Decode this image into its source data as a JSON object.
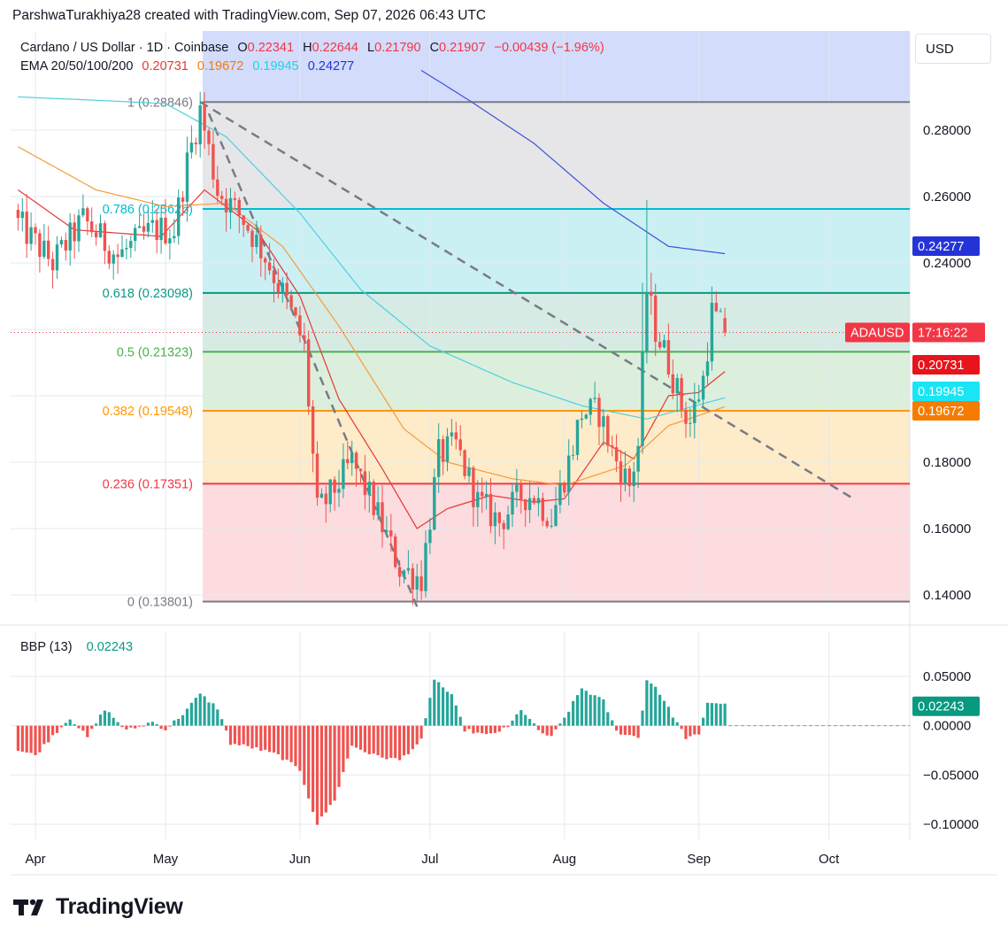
{
  "header": {
    "credit": "ParshwaTurakhiya28 created with TradingView.com, Sep 07, 2026 06:43 UTC",
    "currency": "USD"
  },
  "legend": {
    "symbol": "Cardano / US Dollar · 1D · Coinbase",
    "o_label": "O",
    "o_value": "0.22341",
    "h_label": "H",
    "h_value": "0.22644",
    "l_label": "L",
    "l_value": "0.21790",
    "c_label": "C",
    "c_value": "0.21907",
    "change": "−0.00439 (−1.96%)",
    "ema_label": "EMA 20/50/100/200",
    "ema20": "0.20731",
    "ema50": "0.19672",
    "ema100": "0.19945",
    "ema200": "0.24277"
  },
  "bbp_legend": {
    "label": "BBP (13)",
    "value": "0.02243"
  },
  "logo": {
    "text": "TradingView"
  },
  "colors": {
    "up": "#26a69a",
    "down": "#ef5350",
    "ema20": "#e53935",
    "ema50": "#f59c3d",
    "ema100": "#4dd0e1",
    "ema200": "#3f51d8",
    "grid": "#e6e8ee",
    "text": "#131722"
  },
  "chart_data": [
    {
      "type": "candlestick",
      "title": "Cardano / US Dollar · 1D · Coinbase",
      "y_axis_ticks": [
        "0.28000",
        "0.26000",
        "0.24000",
        "0.18000",
        "0.16000",
        "0.14000"
      ],
      "x_axis_ticks": [
        "Apr",
        "May",
        "Jun",
        "Jul",
        "Aug",
        "Sep",
        "Oct"
      ],
      "ylim": [
        0.1365,
        0.2975
      ],
      "grid": true,
      "fib_levels": [
        {
          "ratio": "1",
          "label": "1 (0.28846)",
          "price": 0.28846,
          "color": "#787b86"
        },
        {
          "ratio": "0.786",
          "label": "0.786 (0.25626)",
          "price": 0.25626,
          "color": "#00bcd4"
        },
        {
          "ratio": "0.618",
          "label": "0.618 (0.23098)",
          "price": 0.23098,
          "color": "#089981"
        },
        {
          "ratio": "0.5",
          "label": "0.5 (0.21323)",
          "price": 0.21323,
          "color": "#4caf50"
        },
        {
          "ratio": "0.382",
          "label": "0.382 (0.19548)",
          "price": 0.19548,
          "color": "#ff9800"
        },
        {
          "ratio": "0.236",
          "label": "0.236 (0.17351)",
          "price": 0.17351,
          "color": "#f23645"
        },
        {
          "ratio": "0",
          "label": "0 (0.13801)",
          "price": 0.13801,
          "color": "#787b86"
        }
      ],
      "trendlines": [
        {
          "name": "descending trendline",
          "from": [
            "May 09",
            0.2885
          ],
          "to": [
            "Oct 06",
            0.1695
          ]
        },
        {
          "name": "breakdown line",
          "from": [
            "May 11",
            0.285
          ],
          "to": [
            "Jun 28",
            0.1365
          ]
        }
      ],
      "price_tags": [
        {
          "label": "0.24277",
          "color": "#2433d8"
        },
        {
          "label": "0.20731",
          "color": "#e8141b"
        },
        {
          "label": "0.19945",
          "color": "#19e5f5"
        },
        {
          "label": "0.19672",
          "color": "#f57c00"
        },
        {
          "label": "ADAUSD",
          "color": "#f23645"
        },
        {
          "label": "17:16:22",
          "color": "#f23645"
        }
      ],
      "last_price": 0.21907,
      "candles_note": "daily OHLC, Mar 28 – Sep 07",
      "close_anchors": [
        [
          "Mar 28",
          0.252
        ],
        [
          "Apr 05",
          0.24
        ],
        [
          "Apr 12",
          0.253
        ],
        [
          "Apr 20",
          0.242
        ],
        [
          "Apr 28",
          0.25
        ],
        [
          "May 03",
          0.25
        ],
        [
          "May 06",
          0.27
        ],
        [
          "May 09",
          0.286
        ],
        [
          "May 13",
          0.262
        ],
        [
          "May 19",
          0.253
        ],
        [
          "May 24",
          0.242
        ],
        [
          "May 29",
          0.228
        ],
        [
          "Jun 02",
          0.215
        ],
        [
          "Jun 05",
          0.165
        ],
        [
          "Jun 08",
          0.17
        ],
        [
          "Jun 13",
          0.18
        ],
        [
          "Jun 18",
          0.167
        ],
        [
          "Jun 24",
          0.148
        ],
        [
          "Jun 29",
          0.145
        ],
        [
          "Jul 03",
          0.182
        ],
        [
          "Jul 07",
          0.185
        ],
        [
          "Jul 12",
          0.168
        ],
        [
          "Jul 17",
          0.162
        ],
        [
          "Jul 22",
          0.17
        ],
        [
          "Jul 25",
          0.17
        ],
        [
          "Jul 29",
          0.163
        ],
        [
          "Aug 02",
          0.18
        ],
        [
          "Aug 05",
          0.195
        ],
        [
          "Aug 09",
          0.195
        ],
        [
          "Aug 12",
          0.183
        ],
        [
          "Aug 16",
          0.173
        ],
        [
          "Aug 18",
          0.185
        ],
        [
          "Aug 20",
          0.232
        ],
        [
          "Aug 22",
          0.22
        ],
        [
          "Aug 25",
          0.21
        ],
        [
          "Aug 28",
          0.197
        ],
        [
          "Aug 30",
          0.192
        ],
        [
          "Sep 02",
          0.205
        ],
        [
          "Sep 04",
          0.225
        ],
        [
          "Sep 07",
          0.2191
        ]
      ],
      "ema_series": [
        {
          "name": "EMA 20",
          "points": [
            [
              "Mar 28",
              0.262
            ],
            [
              "Apr 10",
              0.25
            ],
            [
              "Apr 30",
              0.248
            ],
            [
              "May 10",
              0.262
            ],
            [
              "May 22",
              0.25
            ],
            [
              "Jun 01",
              0.23
            ],
            [
              "Jun 10",
              0.199
            ],
            [
              "Jun 20",
              0.178
            ],
            [
              "Jun 28",
              0.16
            ],
            [
              "Jul 05",
              0.166
            ],
            [
              "Jul 15",
              0.17
            ],
            [
              "Jul 25",
              0.168
            ],
            [
              "Aug 01",
              0.169
            ],
            [
              "Aug 10",
              0.186
            ],
            [
              "Aug 17",
              0.181
            ],
            [
              "Aug 25",
              0.2
            ],
            [
              "Sep 01",
              0.201
            ],
            [
              "Sep 07",
              0.2073
            ]
          ]
        },
        {
          "name": "EMA 50",
          "points": [
            [
              "Mar 28",
              0.275
            ],
            [
              "Apr 15",
              0.262
            ],
            [
              "May 01",
              0.257
            ],
            [
              "May 15",
              0.258
            ],
            [
              "May 28",
              0.245
            ],
            [
              "Jun 10",
              0.221
            ],
            [
              "Jun 25",
              0.19
            ],
            [
              "Jul 05",
              0.18
            ],
            [
              "Jul 20",
              0.175
            ],
            [
              "Aug 01",
              0.173
            ],
            [
              "Aug 15",
              0.179
            ],
            [
              "Aug 25",
              0.191
            ],
            [
              "Sep 07",
              0.1967
            ]
          ]
        },
        {
          "name": "EMA 100",
          "points": [
            [
              "Mar 28",
              0.29
            ],
            [
              "Apr 15",
              0.289
            ],
            [
              "May 01",
              0.288
            ],
            [
              "May 15",
              0.278
            ],
            [
              "Jun 01",
              0.255
            ],
            [
              "Jun 15",
              0.232
            ],
            [
              "Jul 01",
              0.215
            ],
            [
              "Jul 20",
              0.204
            ],
            [
              "Aug 05",
              0.197
            ],
            [
              "Aug 20",
              0.193
            ],
            [
              "Sep 07",
              0.1994
            ]
          ]
        },
        {
          "name": "EMA 200",
          "points": [
            [
              "Jun 29",
              0.298
            ],
            [
              "Jul 10",
              0.289
            ],
            [
              "Jul 25",
              0.276
            ],
            [
              "Aug 10",
              0.258
            ],
            [
              "Aug 25",
              0.245
            ],
            [
              "Sep 07",
              0.2428
            ]
          ]
        }
      ]
    },
    {
      "type": "bar",
      "title": "BBP (13)",
      "y_axis_ticks": [
        "0.05000",
        "0.00000",
        "−0.05000",
        "−0.10000"
      ],
      "ylim": [
        -0.105,
        0.06
      ],
      "last_value": 0.02243,
      "value_anchors": [
        [
          "Mar 28",
          -0.025
        ],
        [
          "Apr 01",
          -0.03
        ],
        [
          "Apr 05",
          -0.01
        ],
        [
          "Apr 09",
          0.008
        ],
        [
          "Apr 13",
          -0.012
        ],
        [
          "Apr 17",
          0.017
        ],
        [
          "Apr 22",
          -0.005
        ],
        [
          "Apr 28",
          0.004
        ],
        [
          "May 01",
          -0.004
        ],
        [
          "May 05",
          0.012
        ],
        [
          "May 09",
          0.032
        ],
        [
          "May 13",
          0.018
        ],
        [
          "May 16",
          -0.018
        ],
        [
          "May 21",
          -0.022
        ],
        [
          "May 27",
          -0.03
        ],
        [
          "Jun 01",
          -0.045
        ],
        [
          "Jun 05",
          -0.1
        ],
        [
          "Jun 09",
          -0.075
        ],
        [
          "Jun 13",
          -0.02
        ],
        [
          "Jun 18",
          -0.03
        ],
        [
          "Jun 24",
          -0.035
        ],
        [
          "Jun 29",
          -0.015
        ],
        [
          "Jul 02",
          0.048
        ],
        [
          "Jul 06",
          0.03
        ],
        [
          "Jul 09",
          -0.004
        ],
        [
          "Jul 14",
          -0.01
        ],
        [
          "Jul 19",
          -0.002
        ],
        [
          "Jul 22",
          0.017
        ],
        [
          "Jul 26",
          -0.005
        ],
        [
          "Jul 29",
          -0.012
        ],
        [
          "Aug 01",
          0.008
        ],
        [
          "Aug 05",
          0.038
        ],
        [
          "Aug 10",
          0.025
        ],
        [
          "Aug 13",
          -0.006
        ],
        [
          "Aug 18",
          -0.012
        ],
        [
          "Aug 20",
          0.046
        ],
        [
          "Aug 22",
          0.04
        ],
        [
          "Aug 26",
          0.01
        ],
        [
          "Aug 29",
          -0.012
        ],
        [
          "Sep 01",
          -0.01
        ],
        [
          "Sep 03",
          0.024
        ],
        [
          "Sep 07",
          0.0224
        ]
      ]
    }
  ]
}
